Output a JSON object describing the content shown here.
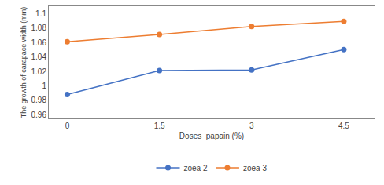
{
  "chart_data": {
    "type": "line",
    "x": [
      0,
      1.5,
      3,
      4.5
    ],
    "series": [
      {
        "name": "zoea 2",
        "color": "#4472C4",
        "values": [
          0.988,
          1.021,
          1.022,
          1.05
        ],
        "marker": "circle"
      },
      {
        "name": "zoea 3",
        "color": "#ED7D31",
        "values": [
          1.061,
          1.071,
          1.082,
          1.089
        ],
        "marker": "circle"
      }
    ],
    "xlabel": "Doses  papain (%)",
    "ylabel": "The growth of carapace width (mm)",
    "xlim": [
      -0.3,
      5.0
    ],
    "xticks": [
      0,
      1.5,
      3,
      4.5
    ],
    "ylim": [
      0.955,
      1.11
    ],
    "yticks": [
      0.96,
      0.98,
      1,
      1.02,
      1.04,
      1.06,
      1.08,
      1.1
    ],
    "grid": false,
    "legend": "bottom"
  }
}
